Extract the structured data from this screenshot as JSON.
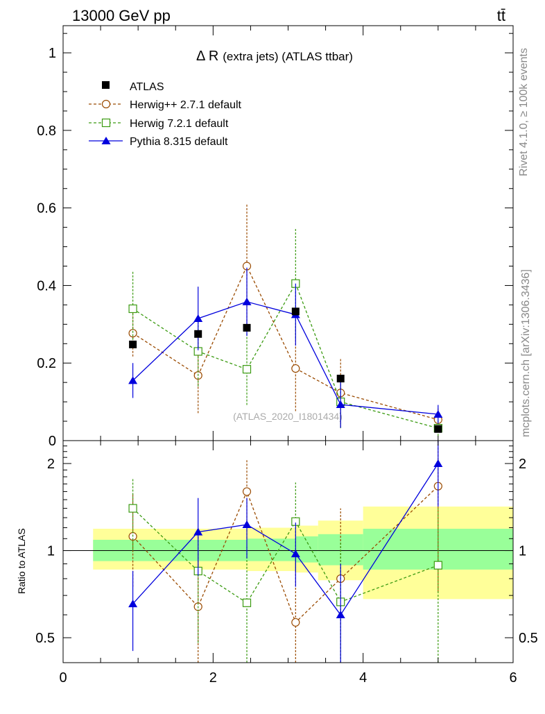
{
  "header": {
    "energy_label": "13000 GeV pp",
    "process_label": "tt̄",
    "side_label_top": "Rivet 4.1.0, ≥ 100k events",
    "side_label_bottom": "mcplots.cern.ch [arXiv:1306.3436]"
  },
  "chart_data": [
    {
      "type": "scatter",
      "panel": "main",
      "title_symbol": "Δ R",
      "title_text": "(extra jets) (ATLAS ttbar)",
      "watermark": "(ATLAS_2020_I1801434)",
      "xlim": [
        0,
        6
      ],
      "ylim": [
        0,
        1.07
      ],
      "yticks": [
        0,
        0.2,
        0.4,
        0.6,
        0.8,
        1
      ],
      "ytick_labels": [
        "0",
        "0.2",
        "0.4",
        "0.6",
        "0.8",
        "1"
      ],
      "legend_position": "top-left",
      "series": [
        {
          "name": "ATLAS",
          "marker": "filled-square",
          "color": "#000000",
          "line": "none",
          "x": [
            0.93,
            1.8,
            2.45,
            3.1,
            3.7,
            5.0
          ],
          "y": [
            0.248,
            0.275,
            0.291,
            0.333,
            0.16,
            0.03
          ],
          "yerr": [
            0.008,
            0.008,
            0.008,
            0.008,
            0.006,
            0.004
          ]
        },
        {
          "name": "Herwig++ 2.7.1 default",
          "marker": "open-circle",
          "color": "#9a4a00",
          "line": "dashed",
          "x": [
            0.93,
            1.8,
            2.45,
            3.1,
            3.7,
            5.0
          ],
          "y": [
            0.277,
            0.168,
            0.45,
            0.186,
            0.123,
            0.054
          ],
          "yerr": [
            0.06,
            0.097,
            0.16,
            0.11,
            0.088,
            0.03
          ]
        },
        {
          "name": "Herwig 7.2.1 default",
          "marker": "open-square",
          "color": "#3a9a10",
          "line": "dashed",
          "x": [
            0.93,
            1.8,
            2.45,
            3.1,
            3.7,
            5.0
          ],
          "y": [
            0.34,
            0.23,
            0.184,
            0.405,
            0.1,
            0.032
          ],
          "yerr": [
            0.098,
            0.09,
            0.092,
            0.142,
            0.068,
            0.02
          ]
        },
        {
          "name": "Pythia 8.315 default",
          "marker": "filled-triangle",
          "color": "#0000dd",
          "line": "solid",
          "x": [
            0.93,
            1.8,
            2.45,
            3.1,
            3.7,
            5.0
          ],
          "y": [
            0.155,
            0.315,
            0.358,
            0.325,
            0.093,
            0.068
          ],
          "yerr": [
            0.045,
            0.082,
            0.088,
            0.08,
            0.06,
            0.024
          ]
        }
      ]
    },
    {
      "type": "scatter",
      "panel": "ratio",
      "ylabel": "Ratio to ATLAS",
      "xlim": [
        0,
        6
      ],
      "ylim": [
        0.41,
        2.4
      ],
      "log_scale": true,
      "xticks": [
        0,
        2,
        4,
        6
      ],
      "xtick_labels": [
        "0",
        "2",
        "4",
        "6"
      ],
      "yticks": [
        0.5,
        1,
        2
      ],
      "ytick_labels": [
        "0.5",
        "1",
        "2"
      ],
      "reference_line": 1,
      "uncertainty_bands": {
        "edges": [
          0.4,
          1.8,
          2.45,
          3.1,
          3.4,
          4.0,
          6.0
        ],
        "inner_lo": [
          0.92,
          0.92,
          0.92,
          0.91,
          0.89,
          0.86
        ],
        "inner_hi": [
          1.09,
          1.09,
          1.1,
          1.12,
          1.14,
          1.19
        ],
        "outer_lo": [
          0.86,
          0.86,
          0.85,
          0.84,
          0.79,
          0.68
        ],
        "outer_hi": [
          1.19,
          1.19,
          1.2,
          1.22,
          1.27,
          1.42
        ],
        "inner_color": "#99ff99",
        "outer_color": "#ffff99"
      },
      "series": [
        {
          "name": "Herwig++ 2.7.1 default",
          "marker": "open-circle",
          "color": "#9a4a00",
          "line": "dashed",
          "x": [
            0.93,
            1.8,
            2.45,
            3.1,
            3.7,
            5.0
          ],
          "y": [
            1.12,
            0.64,
            1.6,
            0.565,
            0.8,
            1.67
          ],
          "ylo": [
            0.75,
            0.36,
            1.1,
            0.35,
            0.3,
            0.72
          ],
          "yhi": [
            1.58,
            1.0,
            2.06,
            0.93,
            1.4,
            2.4
          ]
        },
        {
          "name": "Herwig 7.2.1 default",
          "marker": "open-square",
          "color": "#3a9a10",
          "line": "dashed",
          "x": [
            0.93,
            1.8,
            2.45,
            3.1,
            3.7,
            5.0
          ],
          "y": [
            1.4,
            0.85,
            0.66,
            1.26,
            0.665,
            0.89
          ],
          "ylo": [
            1.0,
            0.48,
            0.38,
            0.85,
            0.3,
            0.4
          ],
          "yhi": [
            1.78,
            1.18,
            1.03,
            1.72,
            1.08,
            1.4
          ]
        },
        {
          "name": "Pythia 8.315 default",
          "marker": "filled-triangle",
          "color": "#0000dd",
          "line": "solid",
          "x": [
            0.93,
            1.8,
            2.45,
            3.1,
            3.7,
            5.0
          ],
          "y": [
            0.655,
            1.16,
            1.23,
            0.975,
            0.6,
            2.0
          ],
          "ylo": [
            0.45,
            0.82,
            0.94,
            0.75,
            0.3,
            1.42
          ],
          "yhi": [
            0.85,
            1.52,
            1.52,
            1.25,
            0.9,
            2.4
          ]
        }
      ]
    }
  ]
}
